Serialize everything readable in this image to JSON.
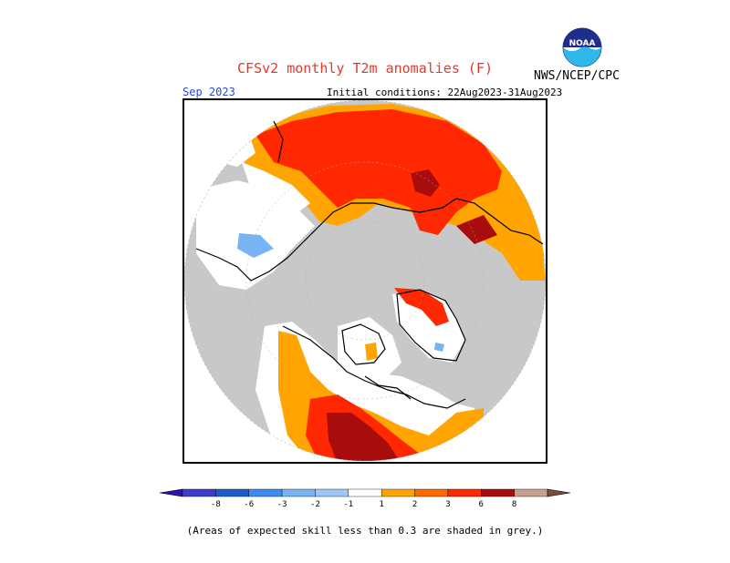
{
  "header": {
    "title": "CFSv2 monthly T2m anomalies (F)",
    "org": "NWS/NCEP/CPC",
    "valid_month": "Sep 2023",
    "initial_conditions": "Initial conditions: 22Aug2023-31Aug2023",
    "logo": {
      "icon": "noaa-logo-icon",
      "text": "NOAA"
    }
  },
  "colors": {
    "grey": "#c8c8c8",
    "land_white": "#ffffff",
    "outline": "#000000",
    "title_red": "#e23a2a",
    "valid_blue": "#2a4bd6"
  },
  "legend": {
    "bins": [
      {
        "color": "#2b14a8"
      },
      {
        "color": "#3c3ccc"
      },
      {
        "color": "#1a5cc8"
      },
      {
        "color": "#3c8cf0"
      },
      {
        "color": "#78b4f5"
      },
      {
        "color": "#9cc8f8"
      },
      {
        "color": "#ffffff"
      },
      {
        "color": "#ffa400"
      },
      {
        "color": "#ff6a00"
      },
      {
        "color": "#ff2800"
      },
      {
        "color": "#a80c0c"
      },
      {
        "color": "#c8a090"
      },
      {
        "color": "#7a4a3a"
      }
    ],
    "labels": [
      "-8",
      "-6",
      "-3",
      "-2",
      "-1",
      "1",
      "2",
      "3",
      "6",
      "8"
    ]
  },
  "footnote": "(Areas of expected skill less than 0.3 are shaded in grey.)"
}
